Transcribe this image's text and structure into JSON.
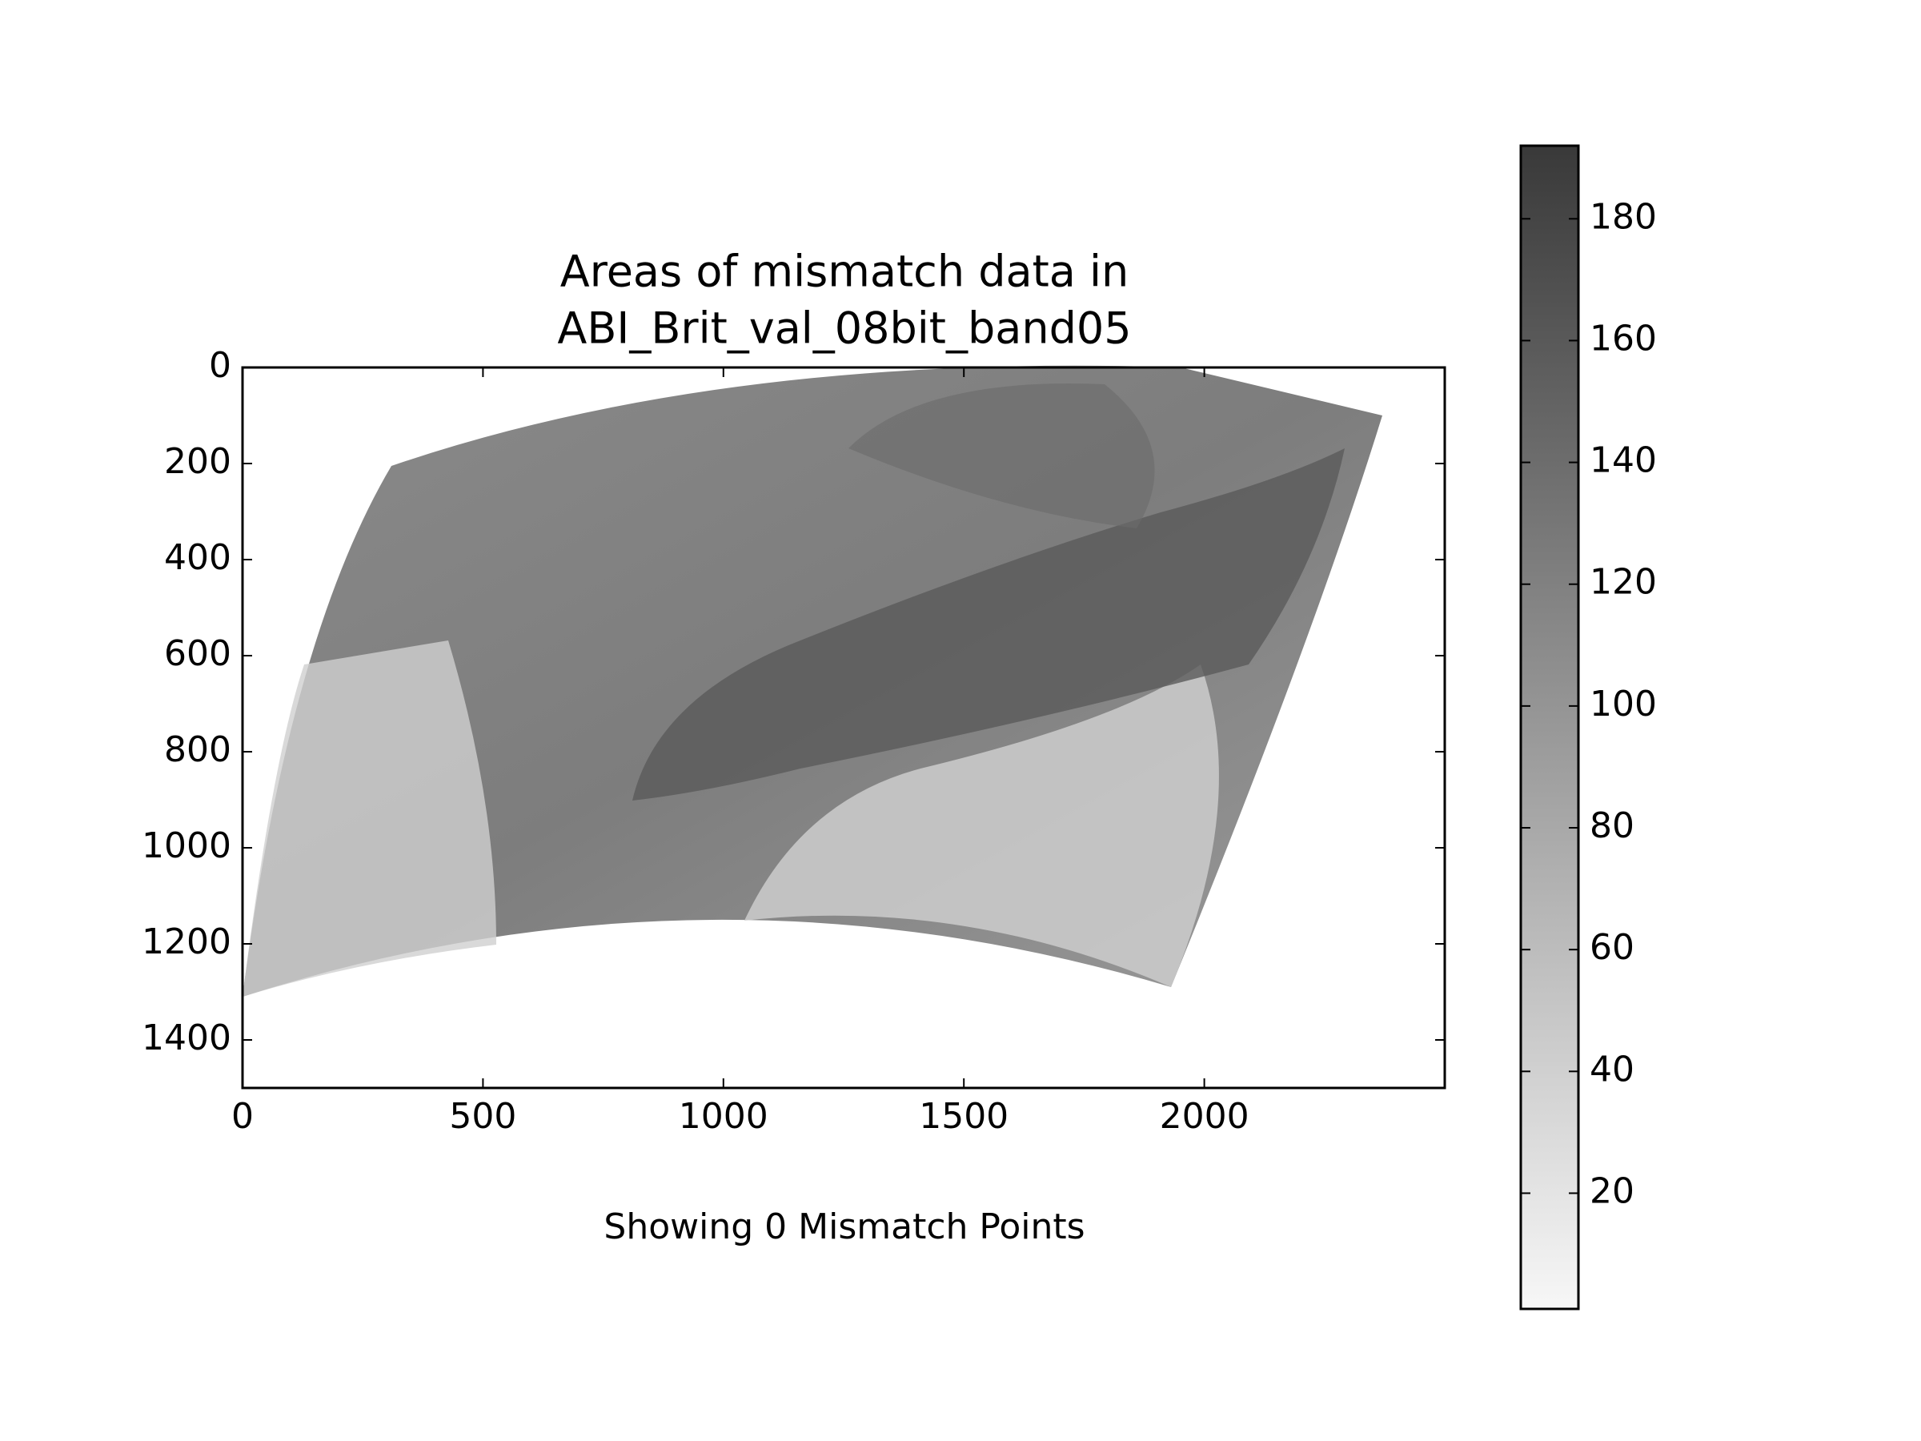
{
  "chart_data": {
    "type": "image",
    "title_lines": [
      "Areas of mismatch data in",
      "ABI_Brit_val_08bit_band05"
    ],
    "xlabel": "Showing 0 Mismatch Points",
    "xlim": [
      0,
      2500
    ],
    "xticks": [
      0,
      500,
      1000,
      1500,
      2000
    ],
    "ylim": [
      1500,
      0
    ],
    "yticks": [
      0,
      200,
      400,
      600,
      800,
      1000,
      1200,
      1400
    ],
    "colorbar": {
      "clim": [
        1,
        192
      ],
      "ticks": [
        20,
        40,
        60,
        80,
        100,
        120,
        140,
        160,
        180
      ],
      "colors": [
        "#f7f7f7",
        "#393939"
      ]
    }
  }
}
